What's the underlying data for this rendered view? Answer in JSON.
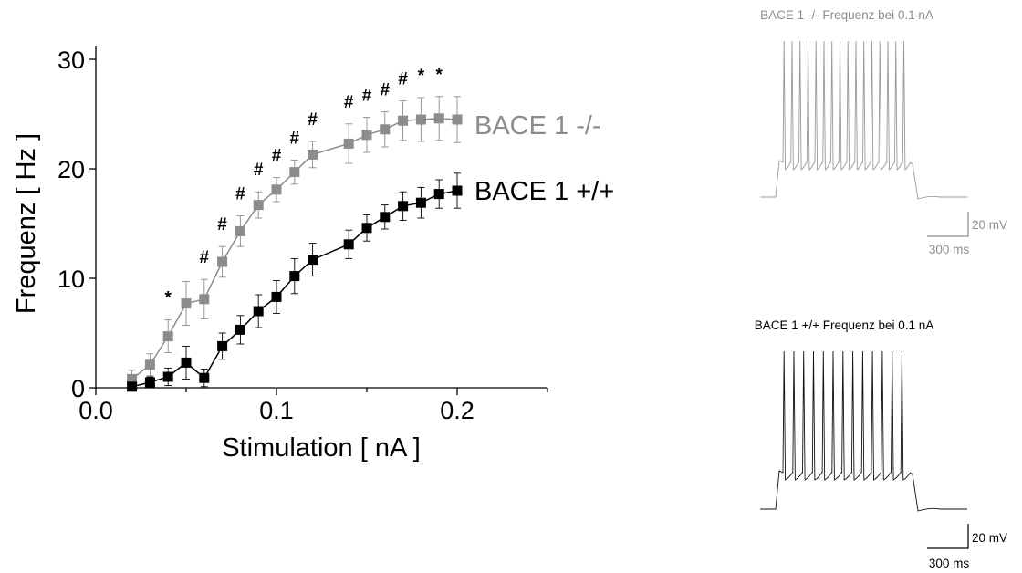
{
  "colors": {
    "ko": "#8c8c8c",
    "wt": "#000000",
    "axis": "#000000"
  },
  "chart_data": [
    {
      "type": "line",
      "xlabel": "Stimulation [ nA ]",
      "ylabel": "Frequenz [ Hz ]",
      "xlim": [
        0,
        0.25
      ],
      "ylim": [
        0,
        31
      ],
      "xticks": [
        0.0,
        0.1,
        0.2
      ],
      "xtick_labels": [
        "0.0",
        "0.1",
        "0.2"
      ],
      "yticks": [
        0,
        10,
        20,
        30
      ],
      "ytick_labels": [
        "0",
        "10",
        "20",
        "30"
      ],
      "grid": false,
      "x": [
        0.02,
        0.03,
        0.04,
        0.05,
        0.06,
        0.07,
        0.08,
        0.09,
        0.1,
        0.11,
        0.12,
        0.14,
        0.15,
        0.16,
        0.17,
        0.18,
        0.19,
        0.2
      ],
      "series": [
        {
          "name": "BACE 1 -/-",
          "color": "#8c8c8c",
          "values": [
            0.8,
            2.1,
            4.7,
            7.7,
            8.1,
            11.5,
            14.3,
            16.7,
            18.1,
            19.7,
            21.3,
            22.3,
            23.1,
            23.6,
            24.4,
            24.5,
            24.6,
            24.5
          ],
          "errors": [
            0.8,
            1.0,
            1.5,
            2.0,
            1.8,
            1.4,
            1.4,
            1.2,
            1.1,
            1.1,
            1.2,
            1.8,
            1.6,
            1.6,
            1.8,
            2.0,
            2.0,
            2.1
          ]
        },
        {
          "name": "BACE 1 +/+",
          "color": "#000000",
          "values": [
            0.1,
            0.5,
            1.0,
            2.3,
            0.9,
            3.8,
            5.3,
            7.0,
            8.3,
            10.2,
            11.7,
            13.1,
            14.6,
            15.6,
            16.6,
            16.9,
            17.7,
            18.0
          ],
          "errors": [
            0.3,
            0.5,
            0.8,
            1.5,
            0.8,
            1.2,
            1.3,
            1.5,
            1.5,
            1.6,
            1.5,
            1.3,
            1.2,
            1.1,
            1.3,
            1.4,
            1.3,
            1.6
          ]
        }
      ],
      "annotations": [
        {
          "x": 0.04,
          "text": "*"
        },
        {
          "x": 0.06,
          "text": "#"
        },
        {
          "x": 0.07,
          "text": "#"
        },
        {
          "x": 0.08,
          "text": "#"
        },
        {
          "x": 0.09,
          "text": "#"
        },
        {
          "x": 0.1,
          "text": "#"
        },
        {
          "x": 0.11,
          "text": "#"
        },
        {
          "x": 0.12,
          "text": "#"
        },
        {
          "x": 0.14,
          "text": "#"
        },
        {
          "x": 0.15,
          "text": "#"
        },
        {
          "x": 0.16,
          "text": "#"
        },
        {
          "x": 0.17,
          "text": "#"
        },
        {
          "x": 0.18,
          "text": "*"
        },
        {
          "x": 0.19,
          "text": "*"
        }
      ]
    }
  ],
  "traces": {
    "ko": {
      "title": "BACE 1 -/- Frequenz bei 0.1 nA",
      "spikes": 16,
      "scale_mv": "20 mV",
      "scale_ms": "300 ms"
    },
    "wt": {
      "title": "BACE 1 +/+ Frequenz bei 0.1 nA",
      "spikes": 13,
      "scale_mv": "20 mV",
      "scale_ms": "300 ms"
    }
  }
}
